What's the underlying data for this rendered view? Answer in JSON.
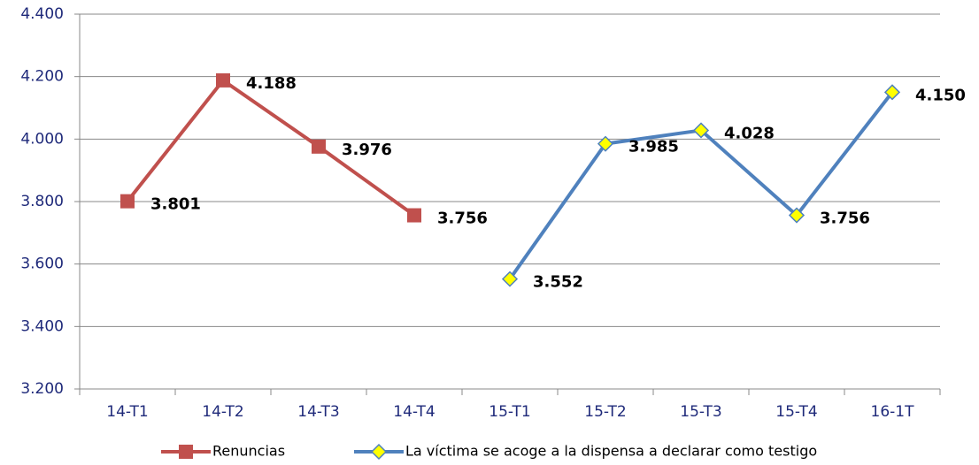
{
  "chart_data": {
    "type": "line",
    "categories": [
      "14-T1",
      "14-T2",
      "14-T3",
      "14-T4",
      "15-T1",
      "15-T2",
      "15-T3",
      "15-T4",
      "16-1T"
    ],
    "series": [
      {
        "name": "Renuncias",
        "color": "#c0504d",
        "marker": "square",
        "values": [
          3801,
          4188,
          3976,
          3756,
          null,
          null,
          null,
          null,
          null
        ],
        "value_labels": [
          "3.801",
          "4.188",
          "3.976",
          "3.756",
          null,
          null,
          null,
          null,
          null
        ]
      },
      {
        "name": "La víctima se acoge a la dispensa a declarar como testigo",
        "color": "#4f81bd",
        "marker": "diamond",
        "marker_fill": "#ffff00",
        "values": [
          null,
          null,
          null,
          null,
          3552,
          3985,
          4028,
          3756,
          4150
        ],
        "value_labels": [
          null,
          null,
          null,
          null,
          "3.552",
          "3.985",
          "4.028",
          "3.756",
          "4.150"
        ]
      }
    ],
    "ylim": [
      3200,
      4400
    ],
    "yticks": [
      {
        "value": 3200,
        "label": "3.200"
      },
      {
        "value": 3400,
        "label": "3.400"
      },
      {
        "value": 3600,
        "label": "3.600"
      },
      {
        "value": 3800,
        "label": "3.800"
      },
      {
        "value": 4000,
        "label": "4.000"
      },
      {
        "value": 4200,
        "label": "4.200"
      },
      {
        "value": 4400,
        "label": "4.400"
      }
    ],
    "grid": true,
    "legend": "bottom"
  }
}
